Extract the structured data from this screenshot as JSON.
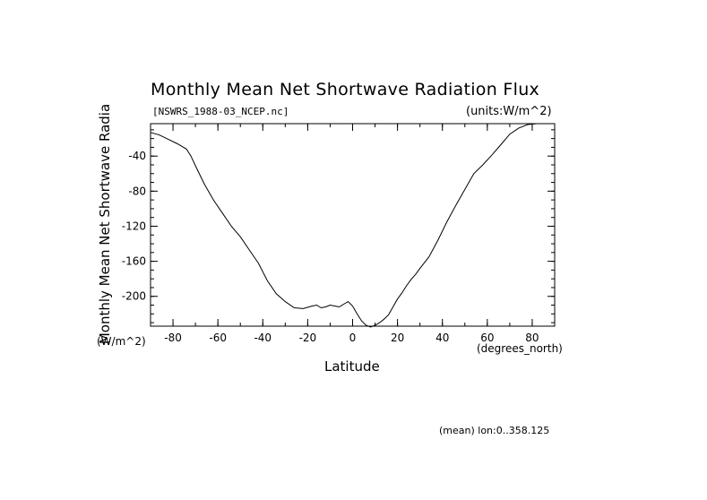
{
  "chart_data": {
    "type": "line",
    "title": "Monthly Mean Net Shortwave Radiation Flux",
    "subtitle_left": "[NSWRS_1988-03_NCEP.nc]",
    "subtitle_right": "(units:W/m^2)",
    "xlabel": "Latitude",
    "x_unit_label": "(degrees_north)",
    "ylabel": "Monthly Mean Net Shortwave Radia",
    "y_unit_label": "(W/m^2)",
    "footer": "(mean) lon:0..358.125",
    "xlim": [
      -90,
      90
    ],
    "ylim": [
      -234,
      -3
    ],
    "x_ticks": [
      -80,
      -60,
      -40,
      -20,
      0,
      20,
      40,
      60,
      80
    ],
    "x_tick_labels": [
      "-80",
      "-60",
      "-40",
      "-20",
      "0",
      "20",
      "40",
      "60",
      "80"
    ],
    "y_ticks": [
      -40,
      -80,
      -120,
      -160,
      -200
    ],
    "y_tick_labels": [
      "-40",
      "-80",
      "-120",
      "-160",
      "-200"
    ],
    "grid": false,
    "line_color": "#000000",
    "series": [
      {
        "x": [
          -90,
          -86,
          -82,
          -78,
          -74,
          -72,
          -70,
          -66,
          -62,
          -58,
          -54,
          -50,
          -46,
          -42,
          -38,
          -34,
          -30,
          -26,
          -22,
          -18,
          -16,
          -14,
          -12,
          -10,
          -8,
          -6,
          -4,
          -2,
          0,
          2,
          4,
          6,
          8,
          10,
          12,
          14,
          16,
          18,
          20,
          22,
          24,
          26,
          28,
          30,
          34,
          38,
          42,
          46,
          50,
          54,
          58,
          62,
          66,
          70,
          74,
          78,
          82,
          86,
          90
        ],
        "y": [
          -13,
          -16,
          -21,
          -26,
          -32,
          -40,
          -51,
          -72,
          -90,
          -105,
          -120,
          -132,
          -147,
          -162,
          -182,
          -197,
          -206,
          -213,
          -214,
          -211,
          -210,
          -213,
          -212,
          -210,
          -211,
          -212,
          -209,
          -206,
          -211,
          -220,
          -228,
          -233,
          -235,
          -233,
          -230,
          -226,
          -221,
          -212,
          -203,
          -196,
          -188,
          -181,
          -175,
          -168,
          -155,
          -136,
          -115,
          -96,
          -78,
          -60,
          -50,
          -39,
          -27,
          -15,
          -8,
          -4,
          -3,
          -3,
          -3
        ]
      }
    ]
  }
}
